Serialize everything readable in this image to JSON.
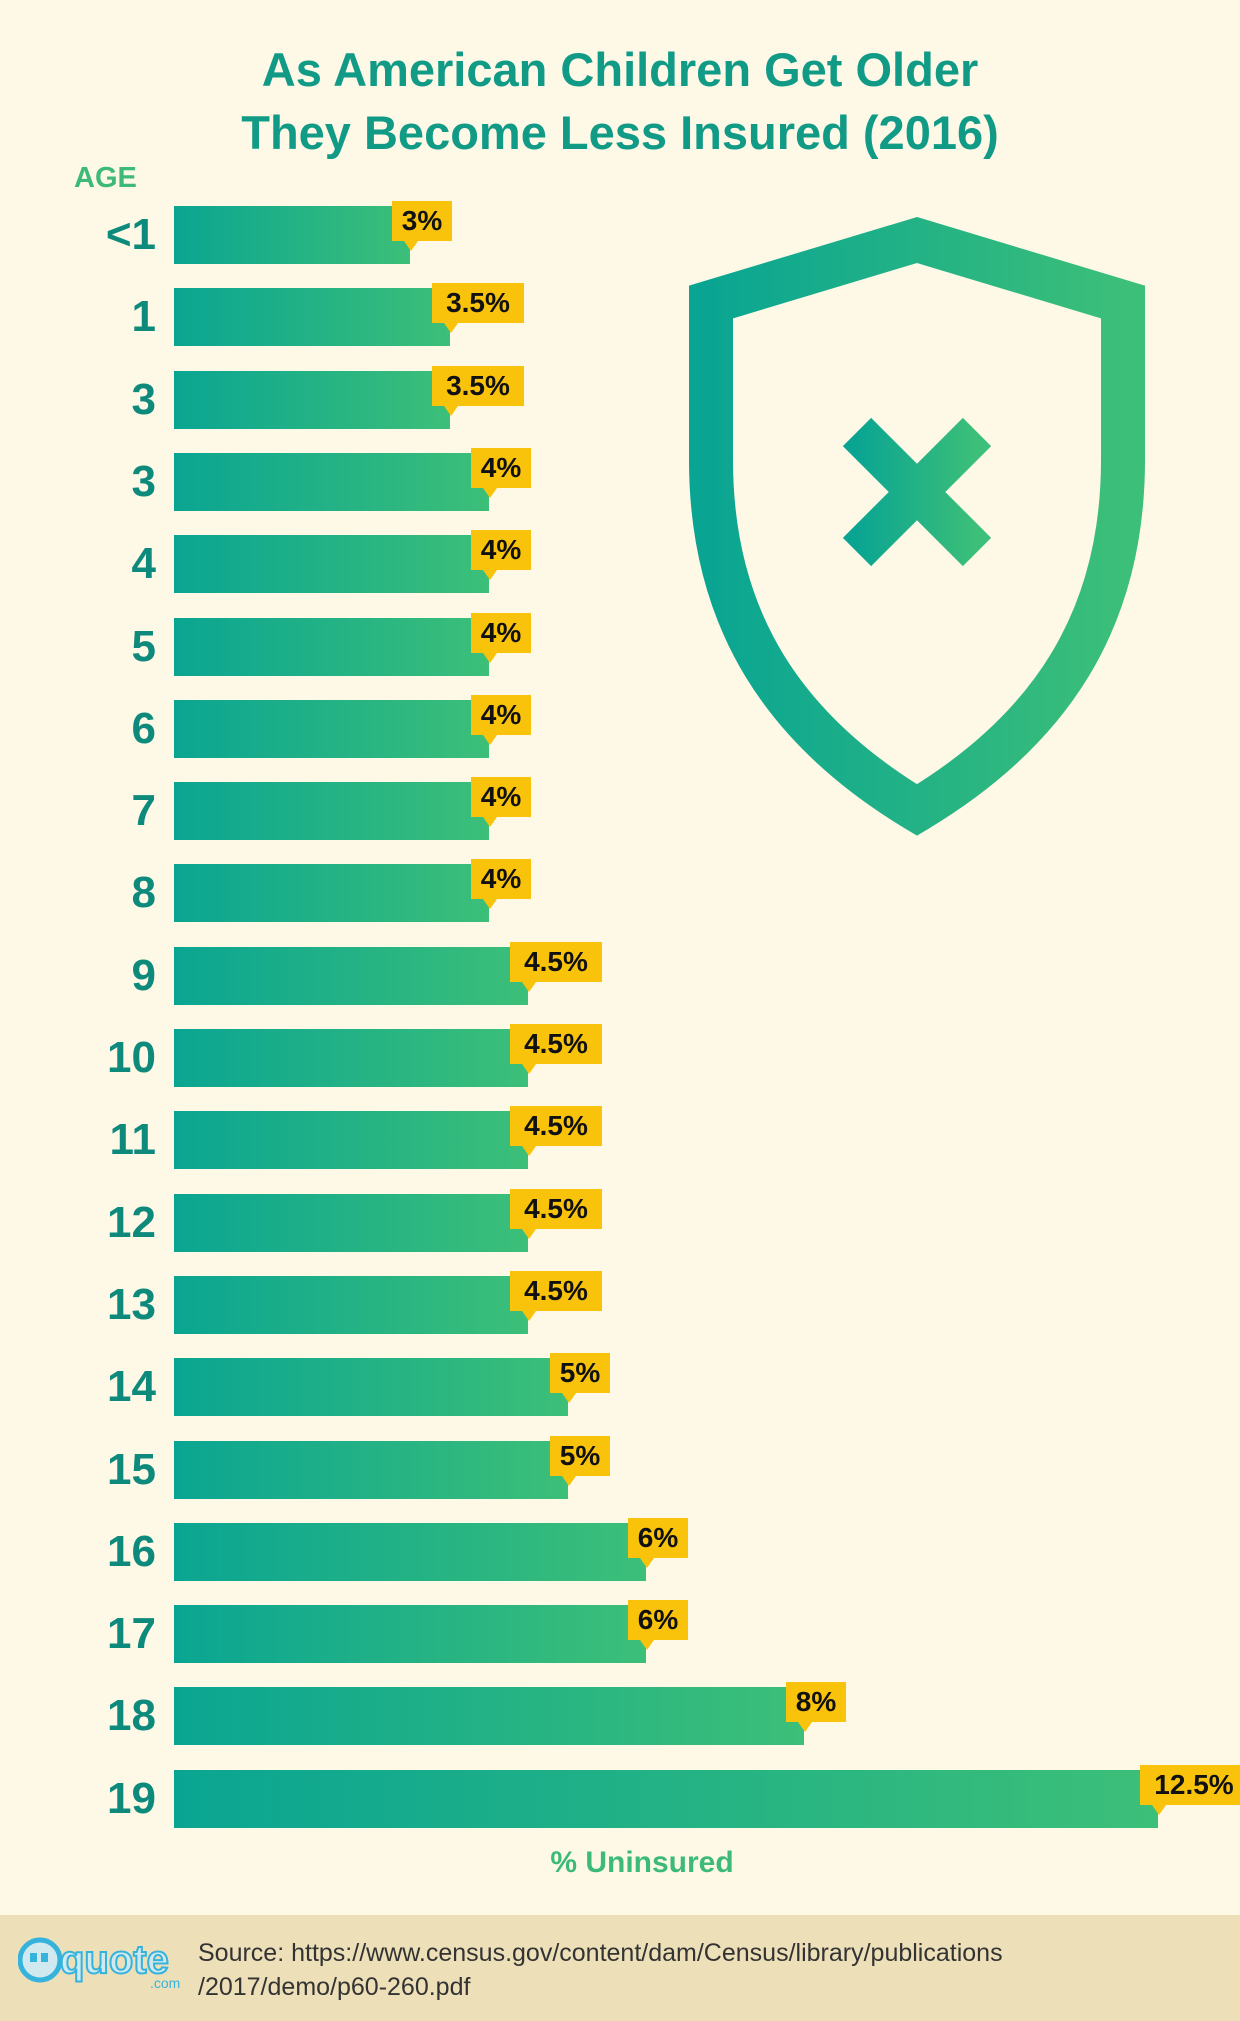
{
  "title_line1": "As American Children Get Older",
  "title_line2": "They Become Less Insured (2016)",
  "chart_data": {
    "type": "bar",
    "orientation": "horizontal",
    "title": "As American Children Get Older They Become Less Insured (2016)",
    "ylabel": "AGE",
    "xlabel": "% Uninsured",
    "categories": [
      "<1",
      "1",
      "3",
      "3",
      "4",
      "5",
      "6",
      "7",
      "8",
      "9",
      "10",
      "11",
      "12",
      "13",
      "14",
      "15",
      "16",
      "17",
      "18",
      "19"
    ],
    "values": [
      3,
      3.5,
      3.5,
      4,
      4,
      4,
      4,
      4,
      4,
      4.5,
      4.5,
      4.5,
      4.5,
      4.5,
      5,
      5,
      6,
      6,
      8,
      12.5
    ],
    "labels": [
      "3%",
      "3.5%",
      "3.5%",
      "4%",
      "4%",
      "4%",
      "4%",
      "4%",
      "4%",
      "4.5%",
      "4.5%",
      "4.5%",
      "4.5%",
      "4.5%",
      "5%",
      "5%",
      "6%",
      "6%",
      "8%",
      "12.5%"
    ],
    "xlim": [
      0,
      12.5
    ],
    "grid": false,
    "legend": "none"
  },
  "source_line1": "Source: https://www.census.gov/content/dam/Census/library/publications",
  "source_line2": "/2017/demo/p60-260.pdf",
  "logo": {
    "main": "quote",
    "suffix": ".com"
  },
  "colors": {
    "background": "#fdf9e6",
    "title": "#119b86",
    "bar_start": "#0aa592",
    "bar_end": "#3cbf78",
    "callout": "#f8c30a",
    "footer": "#ede0b8"
  },
  "icon": "shield-x-icon"
}
